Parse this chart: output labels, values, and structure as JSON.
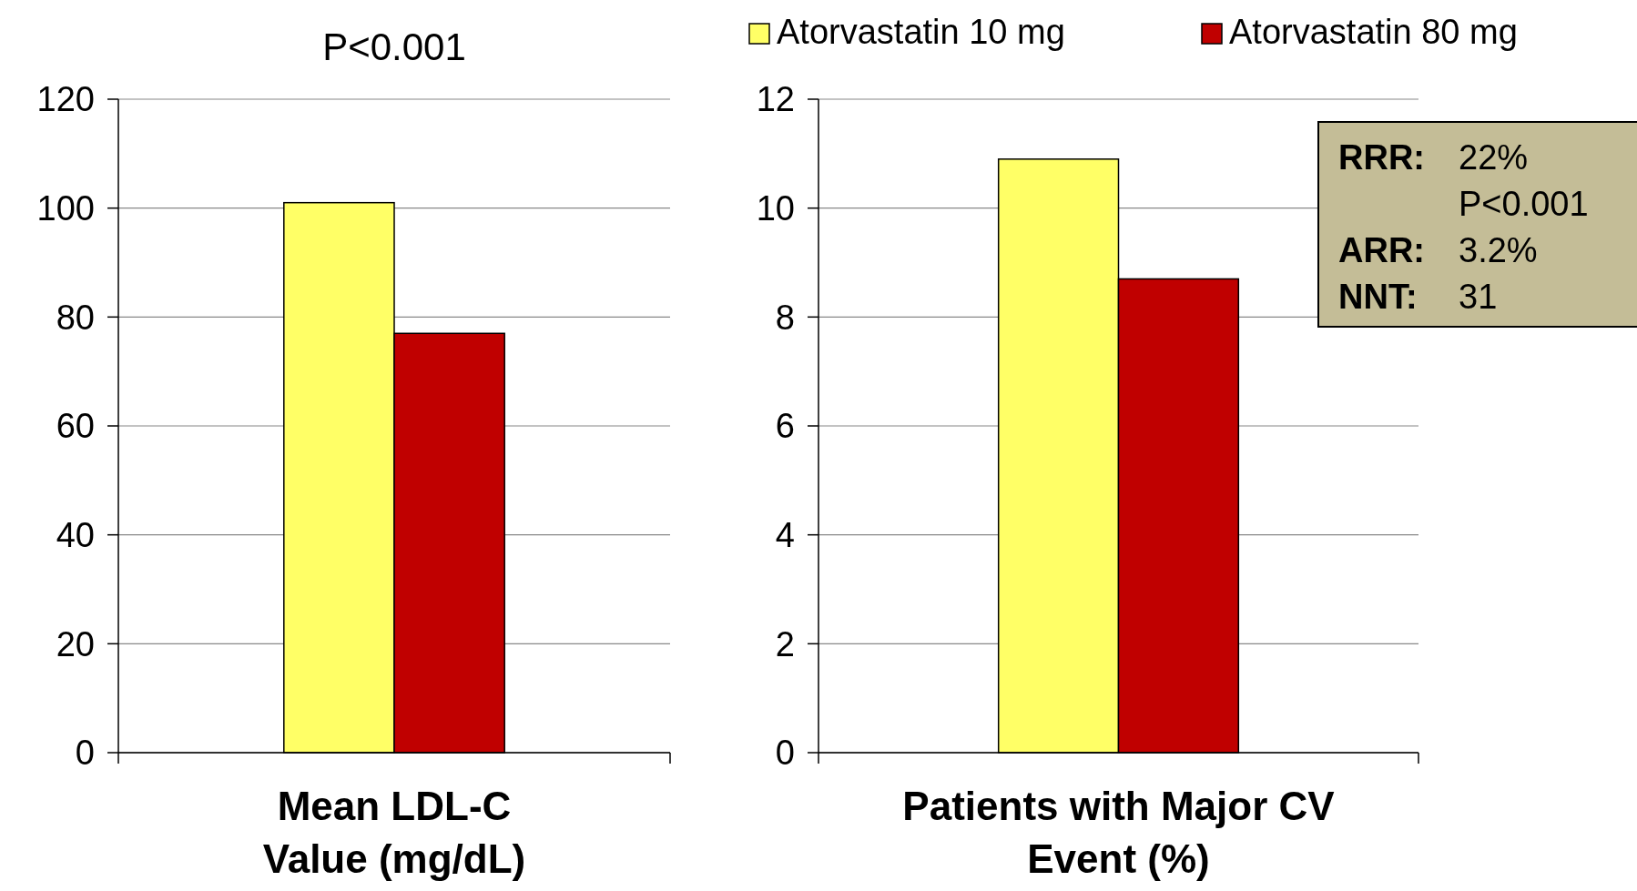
{
  "chart_data": [
    {
      "type": "bar",
      "title": "P<0.001",
      "xlabel": "Mean LDL-C Value (mg/dL)",
      "categories": [
        null
      ],
      "series": [
        {
          "color": "#ffff66",
          "values": [
            101
          ]
        },
        {
          "color": "#c00000",
          "values": [
            77
          ]
        }
      ],
      "ylim": [
        0,
        120
      ],
      "yticks": [
        0,
        20,
        40,
        60,
        80,
        100,
        120
      ],
      "grid": "y",
      "legend": false
    },
    {
      "type": "bar",
      "xlabel": "Patients with Major CV Event (%)",
      "categories": [
        null
      ],
      "series": [
        {
          "name": "Atorvastatin 10 mg",
          "color": "#ffff66",
          "values": [
            10.9
          ]
        },
        {
          "name": "Atorvastatin 80 mg",
          "color": "#c00000",
          "values": [
            8.7
          ]
        }
      ],
      "ylim": [
        0,
        12
      ],
      "yticks": [
        0,
        2,
        4,
        6,
        8,
        10,
        12
      ],
      "grid": "y",
      "legend": "top right",
      "annotations": [
        "RRR: 22%",
        "P<0.001",
        "ARR: 3.2%",
        "NNT: 31"
      ]
    }
  ]
}
